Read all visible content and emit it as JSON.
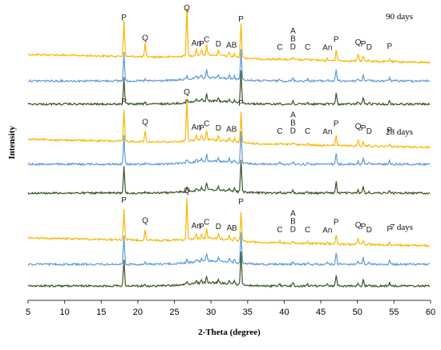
{
  "chart_data": {
    "type": "line",
    "xlabel": "2-Theta (degree)",
    "ylabel": "Intensity",
    "xlim": [
      5,
      60
    ],
    "xticks": [
      5,
      10,
      15,
      20,
      25,
      30,
      35,
      40,
      45,
      50,
      55,
      60
    ],
    "grid": false,
    "colors": [
      "#F5B800",
      "#5B9BD5",
      "#375623"
    ],
    "panels": [
      {
        "label": "90 days",
        "peak_labels": [
          {
            "text": "P",
            "x": 18.1
          },
          {
            "text": "Q",
            "x": 21.0
          },
          {
            "text": "Q",
            "x": 26.7
          },
          {
            "text": "An",
            "x": 28.0
          },
          {
            "text": "P",
            "x": 28.7
          },
          {
            "text": "C",
            "x": 29.4
          },
          {
            "text": "D",
            "x": 31.0
          },
          {
            "text": "AB",
            "x": 32.8
          },
          {
            "text": "P",
            "x": 34.1
          },
          {
            "text": "C",
            "x": 39.4
          },
          {
            "text": "D",
            "x": 41.2
          },
          {
            "text": "B",
            "x": 41.2
          },
          {
            "text": "A",
            "x": 41.2
          },
          {
            "text": "C",
            "x": 43.2
          },
          {
            "text": "An",
            "x": 45.9
          },
          {
            "text": "P",
            "x": 47.1
          },
          {
            "text": "Q",
            "x": 50.1
          },
          {
            "text": "P",
            "x": 50.8
          },
          {
            "text": "D",
            "x": 51.6
          },
          {
            "text": "P",
            "x": 54.4
          }
        ]
      },
      {
        "label": "28 days",
        "peak_labels": [
          {
            "text": "P",
            "x": 18.1
          },
          {
            "text": "Q",
            "x": 21.0
          },
          {
            "text": "Q",
            "x": 26.7
          },
          {
            "text": "An",
            "x": 28.0
          },
          {
            "text": "P",
            "x": 28.7
          },
          {
            "text": "C",
            "x": 29.4
          },
          {
            "text": "D",
            "x": 31.0
          },
          {
            "text": "AB",
            "x": 32.8
          },
          {
            "text": "P",
            "x": 34.1
          },
          {
            "text": "C",
            "x": 39.4
          },
          {
            "text": "D",
            "x": 41.2
          },
          {
            "text": "B",
            "x": 41.2
          },
          {
            "text": "A",
            "x": 41.2
          },
          {
            "text": "C",
            "x": 43.2
          },
          {
            "text": "An",
            "x": 45.9
          },
          {
            "text": "P",
            "x": 47.1
          },
          {
            "text": "Q",
            "x": 50.1
          },
          {
            "text": "P",
            "x": 50.8
          },
          {
            "text": "D",
            "x": 51.6
          },
          {
            "text": "P",
            "x": 54.4
          }
        ]
      },
      {
        "label": "7 days",
        "peak_labels": [
          {
            "text": "P",
            "x": 18.1
          },
          {
            "text": "Q",
            "x": 21.0
          },
          {
            "text": "Q",
            "x": 26.7
          },
          {
            "text": "An",
            "x": 28.0
          },
          {
            "text": "P",
            "x": 28.7
          },
          {
            "text": "C",
            "x": 29.4
          },
          {
            "text": "D",
            "x": 31.0
          },
          {
            "text": "A",
            "x": 32.5
          },
          {
            "text": "B",
            "x": 33.2
          },
          {
            "text": "P",
            "x": 34.1
          },
          {
            "text": "C",
            "x": 39.4
          },
          {
            "text": "D",
            "x": 41.2
          },
          {
            "text": "B",
            "x": 41.2
          },
          {
            "text": "A",
            "x": 41.2
          },
          {
            "text": "C",
            "x": 43.2
          },
          {
            "text": "An",
            "x": 45.9
          },
          {
            "text": "P",
            "x": 47.1
          },
          {
            "text": "Q",
            "x": 50.1
          },
          {
            "text": "P",
            "x": 50.8
          },
          {
            "text": "D",
            "x": 51.6
          },
          {
            "text": "P",
            "x": 54.4
          }
        ]
      }
    ],
    "series_peaks": [
      {
        "x": 18.1,
        "i": [
          1.0,
          0.9,
          0.85
        ]
      },
      {
        "x": 21.0,
        "i": [
          0.35,
          0.05,
          0.05
        ]
      },
      {
        "x": 26.7,
        "i": [
          1.3,
          0.1,
          0.1
        ]
      },
      {
        "x": 28.0,
        "i": [
          0.18,
          0.08,
          0.08
        ]
      },
      {
        "x": 28.7,
        "i": [
          0.15,
          0.1,
          0.1
        ]
      },
      {
        "x": 29.4,
        "i": [
          0.3,
          0.25,
          0.22
        ]
      },
      {
        "x": 31.0,
        "i": [
          0.15,
          0.12,
          0.1
        ]
      },
      {
        "x": 32.5,
        "i": [
          0.12,
          0.12,
          0.1
        ]
      },
      {
        "x": 33.2,
        "i": [
          0.1,
          0.1,
          0.1
        ]
      },
      {
        "x": 34.1,
        "i": [
          0.95,
          1.0,
          1.05
        ]
      },
      {
        "x": 39.4,
        "i": [
          0.05,
          0.05,
          0.05
        ]
      },
      {
        "x": 41.2,
        "i": [
          0.07,
          0.1,
          0.1
        ]
      },
      {
        "x": 43.2,
        "i": [
          0.05,
          0.05,
          0.05
        ]
      },
      {
        "x": 45.9,
        "i": [
          0.04,
          0.04,
          0.04
        ]
      },
      {
        "x": 47.1,
        "i": [
          0.3,
          0.35,
          0.35
        ]
      },
      {
        "x": 50.1,
        "i": [
          0.2,
          0.08,
          0.08
        ]
      },
      {
        "x": 50.8,
        "i": [
          0.15,
          0.2,
          0.22
        ]
      },
      {
        "x": 51.6,
        "i": [
          0.05,
          0.05,
          0.05
        ]
      },
      {
        "x": 54.4,
        "i": [
          0.08,
          0.1,
          0.1
        ]
      }
    ]
  }
}
